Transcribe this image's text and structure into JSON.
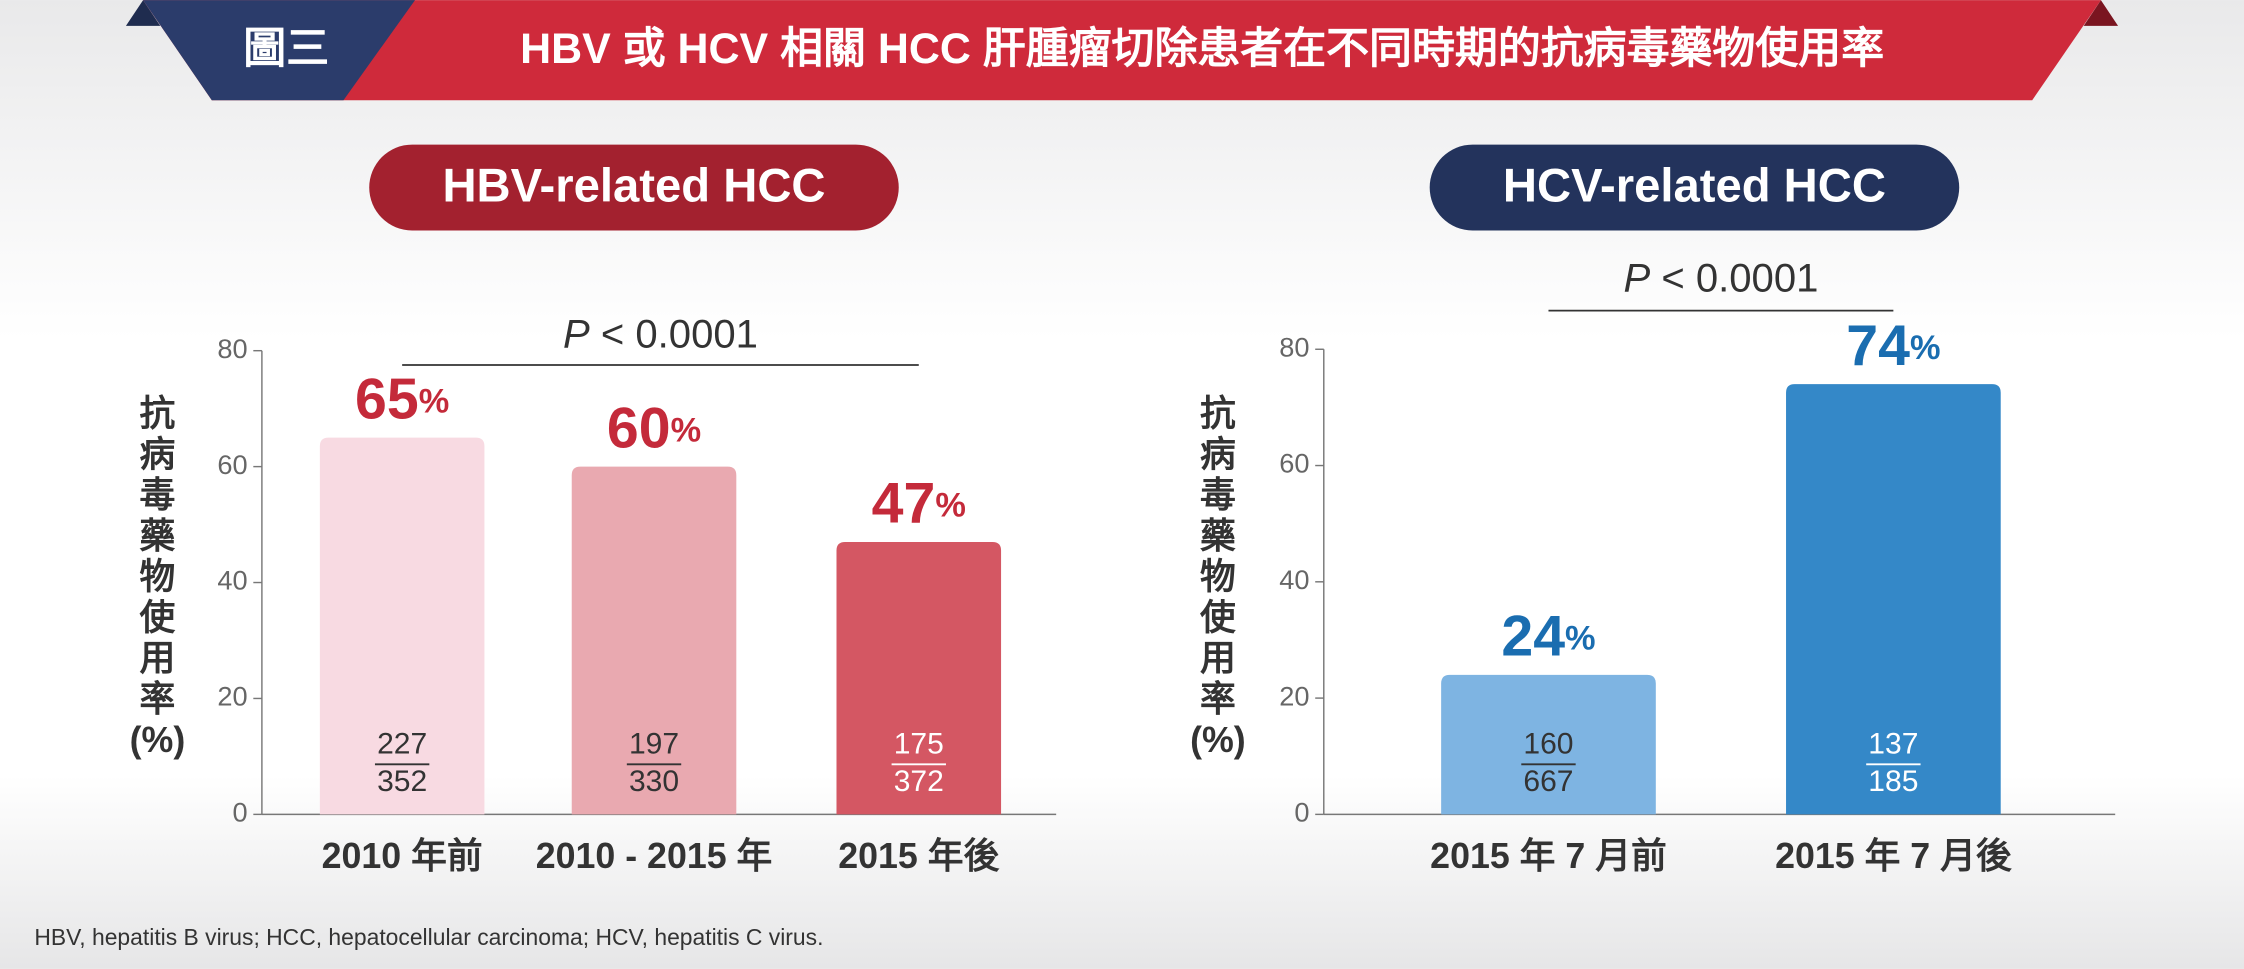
{
  "header": {
    "figure_label": "圖三",
    "title": "HBV 或 HCV 相關 HCC 肝腫瘤切除患者在不同時期的抗病毒藥物使用率"
  },
  "chart_data": [
    {
      "type": "bar",
      "title": "HBV-related HCC",
      "annotation": "P < 0.0001",
      "y_label": "抗病毒藥物使用率(%)",
      "categories": [
        "2010 年前",
        "2010 - 2015 年",
        "2015 年後"
      ],
      "values": [
        65,
        60,
        47
      ],
      "value_labels": [
        "65%",
        "60%",
        "47%"
      ],
      "fractions": [
        {
          "numerator": 227,
          "denominator": 352
        },
        {
          "numerator": 197,
          "denominator": 330
        },
        {
          "numerator": 175,
          "denominator": 372
        }
      ],
      "colors": [
        "#f8dae2",
        "#e9a9b0",
        "#d45763"
      ],
      "label_color": "#c42a3a",
      "title_color": "#a3212f",
      "ylim": [
        0,
        80
      ],
      "yticks": [
        0,
        20,
        40,
        60,
        80
      ]
    },
    {
      "type": "bar",
      "title": "HCV-related HCC",
      "annotation": "P < 0.0001",
      "y_label": "抗病毒藥物使用率(%)",
      "categories": [
        "2015 年 7 月前",
        "2015 年 7 月後"
      ],
      "values": [
        24,
        74
      ],
      "value_labels": [
        "24%",
        "74%"
      ],
      "fractions": [
        {
          "numerator": 160,
          "denominator": 667
        },
        {
          "numerator": 137,
          "denominator": 185
        }
      ],
      "colors": [
        "#7eb4e2",
        "#3488c8"
      ],
      "label_color": "#1a6db0",
      "title_color": "#23335c",
      "ylim": [
        0,
        80
      ],
      "yticks": [
        0,
        20,
        40,
        60,
        80
      ]
    }
  ],
  "footnote": "HBV, hepatitis B virus; HCC, hepatocellular carcinoma; HCV, hepatitis C virus."
}
